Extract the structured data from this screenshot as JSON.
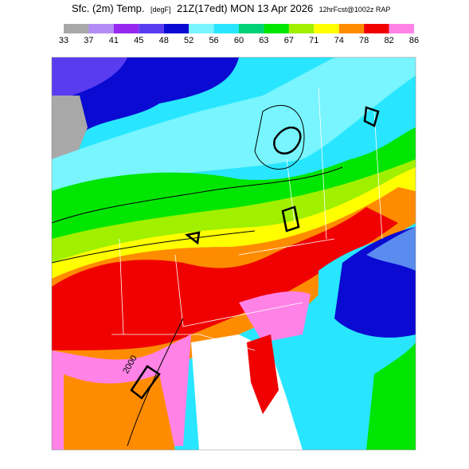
{
  "title": {
    "field": "Sfc. (2m) Temp.",
    "units": "[degF]",
    "valid": "21Z(17edt) MON 13 Apr 2026",
    "run": "12hrFcst@1002z RAP"
  },
  "colorbar": {
    "labels": [
      "33",
      "37",
      "41",
      "45",
      "48",
      "52",
      "56",
      "60",
      "63",
      "67",
      "71",
      "74",
      "78",
      "82",
      "86"
    ],
    "colors": [
      "#a8a8a8",
      "#b48cf5",
      "#9628f0",
      "#5a3cf0",
      "#0a0ad2",
      "#78f5ff",
      "#28e6ff",
      "#00d278",
      "#00e600",
      "#a0f000",
      "#ffff00",
      "#ff8c00",
      "#f00000",
      "#ff82e6"
    ]
  },
  "contour_label": "2000"
}
